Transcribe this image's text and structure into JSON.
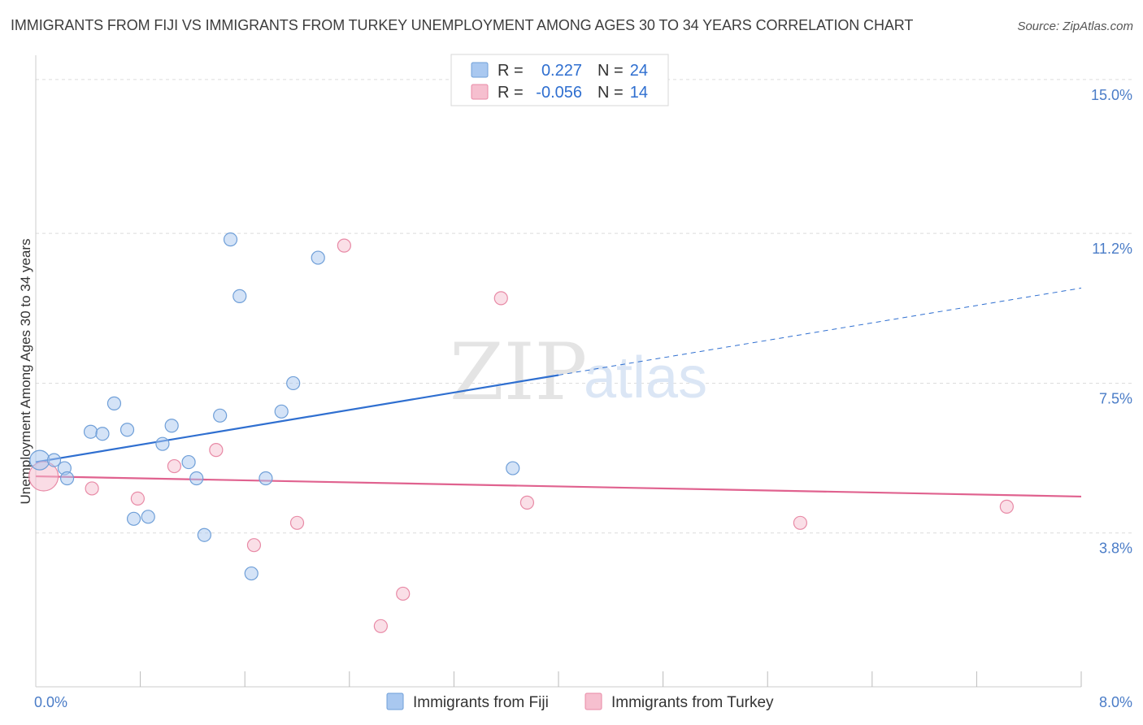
{
  "title": "IMMIGRANTS FROM FIJI VS IMMIGRANTS FROM TURKEY UNEMPLOYMENT AMONG AGES 30 TO 34 YEARS CORRELATION CHART",
  "source": "Source: ZipAtlas.com",
  "watermark": {
    "zip": "ZIP",
    "atlas": "atlas"
  },
  "legend": {
    "r_label": "R =",
    "n_label": "N =",
    "entries": [
      {
        "r": "0.227",
        "n": "24",
        "color": "#a9c8f0"
      },
      {
        "r": "-0.056",
        "n": "14",
        "color": "#f6bfcf"
      }
    ]
  },
  "chart_data": {
    "type": "scatter",
    "xlabel": "",
    "ylabel": "Unemployment Among Ages 30 to 34 years",
    "xlim": [
      0,
      8
    ],
    "ylim": [
      0,
      15.4
    ],
    "x_tick_labels": [
      {
        "value": 0,
        "label": "0.0%"
      },
      {
        "value": 8,
        "label": "8.0%"
      }
    ],
    "x_minor_ticks": [
      0.8,
      1.6,
      2.4,
      3.2,
      4.0,
      4.8,
      5.6,
      6.4,
      7.2,
      8.0
    ],
    "y_tick_labels": [
      {
        "value": 3.8,
        "label": "3.8%"
      },
      {
        "value": 7.5,
        "label": "7.5%"
      },
      {
        "value": 11.2,
        "label": "11.2%"
      },
      {
        "value": 15.0,
        "label": "15.0%"
      }
    ],
    "grid": true,
    "legend_position": "top-center",
    "series": [
      {
        "name": "Immigrants from Fiji",
        "color": "#a9c8f0",
        "stroke": "#6f9fd8",
        "trend_color": "#2f6fd0",
        "trend": {
          "x0": 0.0,
          "y0": 5.55,
          "x1": 4.0,
          "y1": 7.7,
          "dash_to_x": 8.0,
          "dash_to_y": 9.85
        },
        "points": [
          [
            0.03,
            5.6
          ],
          [
            0.14,
            5.6
          ],
          [
            0.22,
            5.4
          ],
          [
            0.24,
            5.15
          ],
          [
            0.42,
            6.3
          ],
          [
            0.51,
            6.25
          ],
          [
            0.6,
            7.0
          ],
          [
            0.7,
            6.35
          ],
          [
            0.75,
            4.15
          ],
          [
            0.86,
            4.2
          ],
          [
            0.97,
            6.0
          ],
          [
            1.04,
            6.45
          ],
          [
            1.17,
            5.55
          ],
          [
            1.23,
            5.15
          ],
          [
            1.29,
            3.75
          ],
          [
            1.41,
            6.7
          ],
          [
            1.49,
            11.05
          ],
          [
            1.56,
            9.65
          ],
          [
            1.65,
            2.8
          ],
          [
            1.76,
            5.15
          ],
          [
            1.88,
            6.8
          ],
          [
            1.97,
            7.5
          ],
          [
            2.16,
            10.6
          ],
          [
            3.65,
            5.4
          ]
        ]
      },
      {
        "name": "Immigrants from Turkey",
        "color": "#f6bfcf",
        "stroke": "#e88aa6",
        "trend_color": "#e0628f",
        "trend": {
          "x0": 0.0,
          "y0": 5.2,
          "x1": 8.0,
          "y1": 4.7
        },
        "points": [
          [
            0.06,
            5.2
          ],
          [
            0.43,
            4.9
          ],
          [
            0.78,
            4.65
          ],
          [
            1.06,
            5.45
          ],
          [
            1.38,
            5.85
          ],
          [
            1.67,
            3.5
          ],
          [
            2.0,
            4.05
          ],
          [
            2.36,
            10.9
          ],
          [
            2.64,
            1.5
          ],
          [
            2.81,
            2.3
          ],
          [
            3.56,
            9.6
          ],
          [
            3.76,
            4.55
          ],
          [
            5.85,
            4.05
          ],
          [
            7.43,
            4.45
          ]
        ]
      }
    ]
  }
}
